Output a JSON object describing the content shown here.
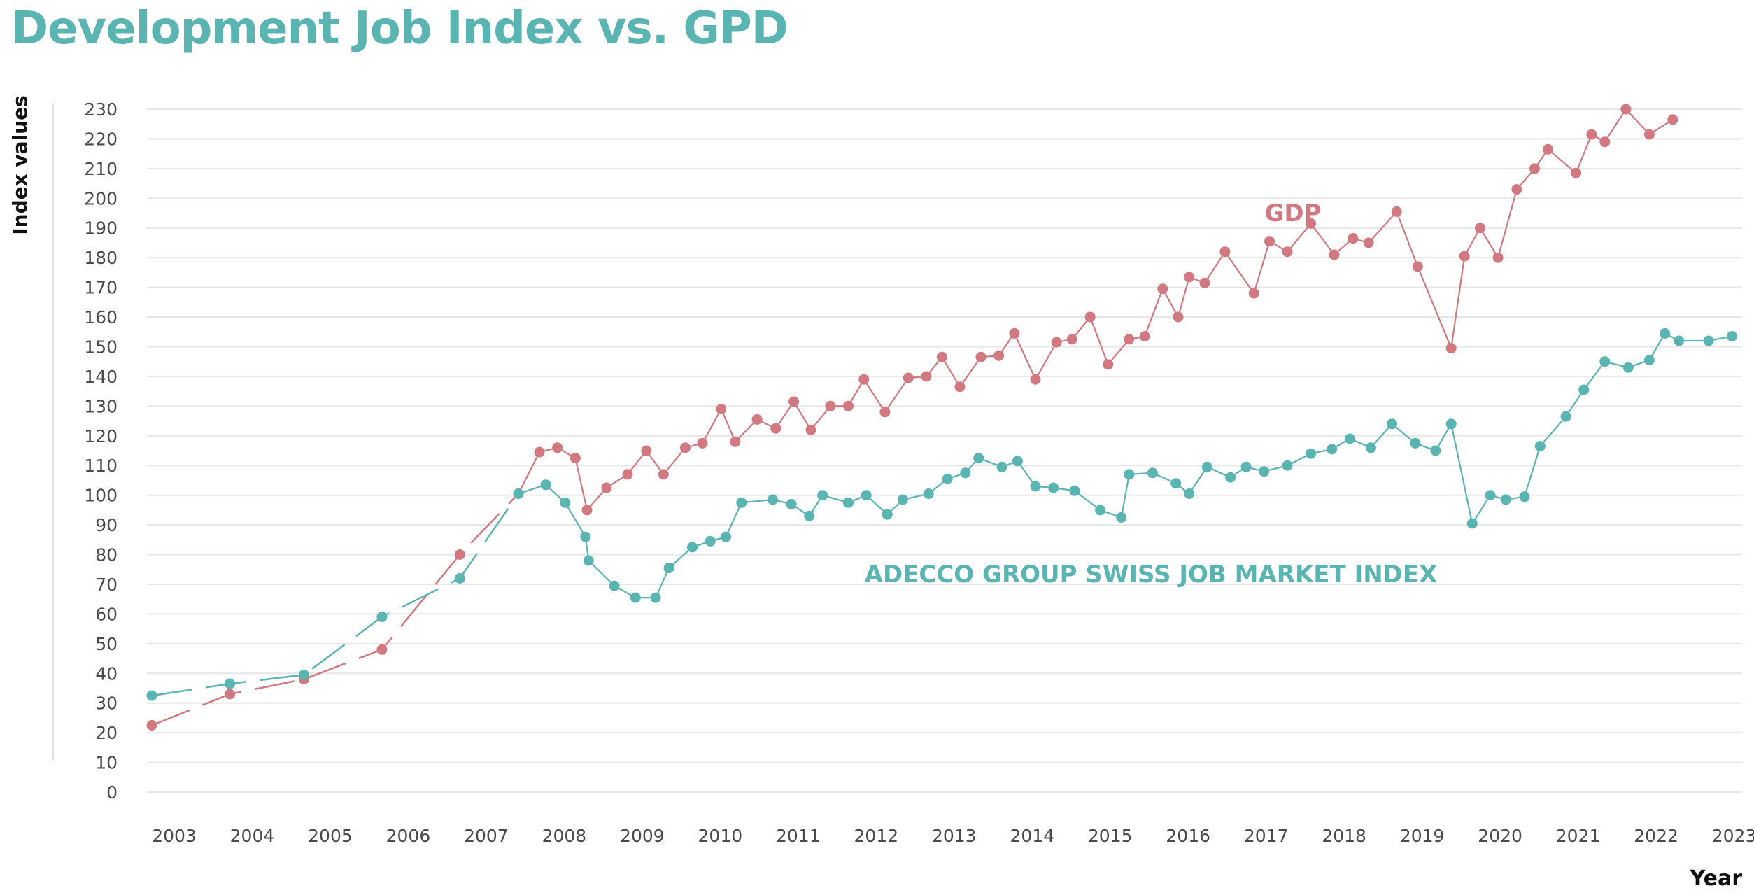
{
  "chart_data": {
    "type": "line",
    "title": "Development Job Index vs. GPD",
    "xlabel": "Year",
    "ylabel": "Index values",
    "ylim": [
      0,
      230
    ],
    "xlim": [
      2003,
      2023.3
    ],
    "yticks": [
      0,
      10,
      20,
      30,
      40,
      50,
      60,
      70,
      80,
      90,
      100,
      110,
      120,
      130,
      140,
      150,
      160,
      170,
      180,
      190,
      200,
      210,
      220,
      230
    ],
    "xticks": [
      "2003",
      "2004",
      "2005",
      "2006",
      "2007",
      "2008",
      "2009",
      "2010",
      "2011",
      "2012",
      "2013",
      "2014",
      "2015",
      "2016",
      "2017",
      "2018",
      "2019",
      "2020",
      "2021",
      "2022",
      "2023"
    ],
    "grid": "horizontal",
    "series": [
      {
        "name": "GDP",
        "color": "#d27880",
        "dashed_until": 2007.7,
        "points": [
          [
            2003.0,
            22.5
          ],
          [
            2004.0,
            33
          ],
          [
            2004.95,
            38
          ],
          [
            2005.95,
            48
          ],
          [
            2006.95,
            80
          ],
          [
            2007.7,
            100.5
          ],
          [
            2007.97,
            114.5
          ],
          [
            2008.2,
            116
          ],
          [
            2008.43,
            112.5
          ],
          [
            2008.58,
            95
          ],
          [
            2008.83,
            102.5
          ],
          [
            2009.1,
            107
          ],
          [
            2009.34,
            115
          ],
          [
            2009.56,
            107
          ],
          [
            2009.84,
            116
          ],
          [
            2010.06,
            117.5
          ],
          [
            2010.3,
            129
          ],
          [
            2010.48,
            118
          ],
          [
            2010.76,
            125.5
          ],
          [
            2011.0,
            122.5
          ],
          [
            2011.23,
            131.5
          ],
          [
            2011.45,
            122
          ],
          [
            2011.7,
            130
          ],
          [
            2011.93,
            130
          ],
          [
            2012.13,
            139
          ],
          [
            2012.4,
            128
          ],
          [
            2012.7,
            139.5
          ],
          [
            2012.93,
            140
          ],
          [
            2013.13,
            146.5
          ],
          [
            2013.36,
            136.5
          ],
          [
            2013.63,
            146.5
          ],
          [
            2013.86,
            147
          ],
          [
            2014.06,
            154.5
          ],
          [
            2014.33,
            139
          ],
          [
            2014.6,
            151.5
          ],
          [
            2014.8,
            152.5
          ],
          [
            2015.03,
            160
          ],
          [
            2015.26,
            144
          ],
          [
            2015.53,
            152.5
          ],
          [
            2015.73,
            153.5
          ],
          [
            2015.96,
            169.5
          ],
          [
            2016.16,
            160
          ],
          [
            2016.3,
            173.5
          ],
          [
            2016.5,
            171.5
          ],
          [
            2016.76,
            182
          ],
          [
            2017.13,
            168
          ],
          [
            2017.33,
            185.5
          ],
          [
            2017.56,
            182
          ],
          [
            2017.86,
            191.5
          ],
          [
            2018.16,
            181
          ],
          [
            2018.4,
            186.5
          ],
          [
            2018.6,
            185
          ],
          [
            2018.96,
            195.5
          ],
          [
            2019.23,
            177
          ],
          [
            2019.66,
            149.5
          ],
          [
            2019.83,
            180.5
          ],
          [
            2020.03,
            190
          ],
          [
            2020.26,
            180
          ],
          [
            2020.5,
            203
          ],
          [
            2020.73,
            210
          ],
          [
            2020.9,
            216.5
          ],
          [
            2021.26,
            208.5
          ],
          [
            2021.46,
            221.5
          ],
          [
            2021.63,
            219
          ],
          [
            2021.9,
            230
          ],
          [
            2022.2,
            221.5
          ],
          [
            2022.5,
            226.5
          ]
        ]
      },
      {
        "name": "ADECCO GROUP SWISS JOB MARKET INDEX",
        "color": "#5ab4b1",
        "dashed_until": 2007.7,
        "points": [
          [
            2003.0,
            32.5
          ],
          [
            2004.0,
            36.5
          ],
          [
            2004.95,
            39.5
          ],
          [
            2005.95,
            59
          ],
          [
            2006.95,
            72
          ],
          [
            2007.7,
            100.5
          ],
          [
            2008.05,
            103.5
          ],
          [
            2008.3,
            97.5
          ],
          [
            2008.56,
            86
          ],
          [
            2008.6,
            78
          ],
          [
            2008.93,
            69.5
          ],
          [
            2009.2,
            65.5
          ],
          [
            2009.46,
            65.5
          ],
          [
            2009.63,
            75.5
          ],
          [
            2009.93,
            82.5
          ],
          [
            2010.16,
            84.5
          ],
          [
            2010.36,
            86
          ],
          [
            2010.56,
            97.5
          ],
          [
            2010.96,
            98.5
          ],
          [
            2011.2,
            97
          ],
          [
            2011.43,
            93
          ],
          [
            2011.6,
            100
          ],
          [
            2011.93,
            97.5
          ],
          [
            2012.16,
            100
          ],
          [
            2012.43,
            93.5
          ],
          [
            2012.63,
            98.5
          ],
          [
            2012.96,
            100.5
          ],
          [
            2013.2,
            105.5
          ],
          [
            2013.43,
            107.5
          ],
          [
            2013.6,
            112.5
          ],
          [
            2013.9,
            109.5
          ],
          [
            2014.1,
            111.5
          ],
          [
            2014.33,
            103
          ],
          [
            2014.56,
            102.5
          ],
          [
            2014.83,
            101.5
          ],
          [
            2015.16,
            95
          ],
          [
            2015.43,
            92.5
          ],
          [
            2015.53,
            107
          ],
          [
            2015.83,
            107.5
          ],
          [
            2016.13,
            104
          ],
          [
            2016.3,
            100.5
          ],
          [
            2016.53,
            109.5
          ],
          [
            2016.83,
            106
          ],
          [
            2017.03,
            109.5
          ],
          [
            2017.26,
            108
          ],
          [
            2017.56,
            110
          ],
          [
            2017.86,
            114
          ],
          [
            2018.13,
            115.5
          ],
          [
            2018.36,
            119
          ],
          [
            2018.63,
            116
          ],
          [
            2018.9,
            124
          ],
          [
            2019.2,
            117.5
          ],
          [
            2019.46,
            115
          ],
          [
            2019.66,
            124
          ],
          [
            2019.93,
            90.5
          ],
          [
            2020.16,
            100
          ],
          [
            2020.36,
            98.5
          ],
          [
            2020.6,
            99.5
          ],
          [
            2020.8,
            116.5
          ],
          [
            2021.13,
            126.5
          ],
          [
            2021.36,
            135.5
          ],
          [
            2021.63,
            145
          ],
          [
            2021.93,
            143
          ],
          [
            2022.2,
            145.5
          ],
          [
            2022.4,
            154.5
          ],
          [
            2022.58,
            152
          ],
          [
            2022.96,
            152
          ],
          [
            2023.26,
            153.5
          ]
        ]
      }
    ]
  }
}
